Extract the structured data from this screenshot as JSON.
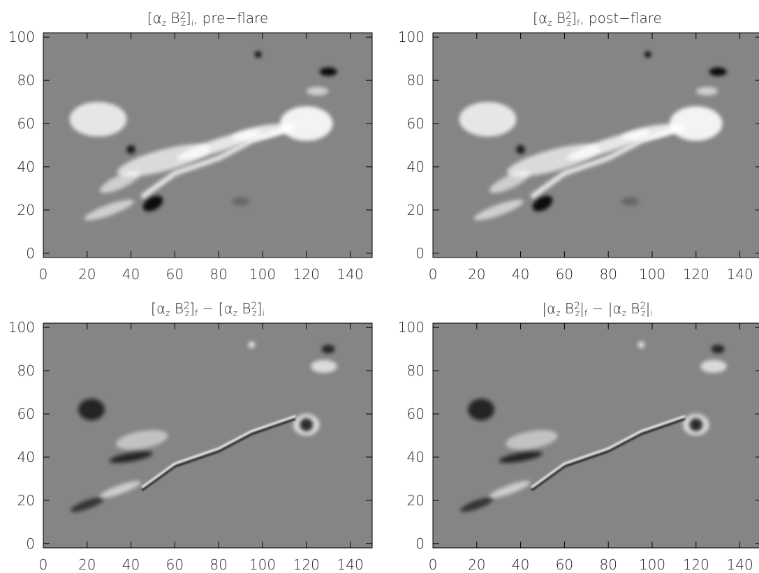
{
  "chart_data": [
    {
      "type": "image",
      "title_parts": [
        {
          "text": "[α"
        },
        {
          "text": "z",
          "pos": "sub"
        },
        {
          "text": " B"
        },
        {
          "text": "2",
          "pos": "sup"
        },
        {
          "text": "z",
          "pos": "sub"
        },
        {
          "text": "]"
        },
        {
          "text": "i",
          "pos": "sub"
        },
        {
          "text": ", pre−flare"
        }
      ],
      "xlim": [
        0,
        150
      ],
      "ylim": [
        -2,
        102
      ],
      "xticks": [
        0,
        20,
        40,
        60,
        80,
        100,
        120,
        140
      ],
      "yticks": [
        0,
        20,
        40,
        60,
        80,
        100
      ]
    },
    {
      "type": "image",
      "title_parts": [
        {
          "text": "[α"
        },
        {
          "text": "z",
          "pos": "sub"
        },
        {
          "text": " B"
        },
        {
          "text": "2",
          "pos": "sup"
        },
        {
          "text": "z",
          "pos": "sub"
        },
        {
          "text": "]"
        },
        {
          "text": "f",
          "pos": "sub"
        },
        {
          "text": ", post−flare"
        }
      ],
      "xlim": [
        0,
        150
      ],
      "ylim": [
        -2,
        102
      ],
      "xticks": [
        0,
        20,
        40,
        60,
        80,
        100,
        120,
        140
      ],
      "yticks": [
        0,
        20,
        40,
        60,
        80,
        100
      ]
    },
    {
      "type": "image",
      "title_parts": [
        {
          "text": "[α"
        },
        {
          "text": "z",
          "pos": "sub"
        },
        {
          "text": " B"
        },
        {
          "text": "2",
          "pos": "sup"
        },
        {
          "text": "z",
          "pos": "sub"
        },
        {
          "text": "]"
        },
        {
          "text": "f",
          "pos": "sub"
        },
        {
          "text": " − [α"
        },
        {
          "text": "z",
          "pos": "sub"
        },
        {
          "text": " B"
        },
        {
          "text": "2",
          "pos": "sup"
        },
        {
          "text": "z",
          "pos": "sub"
        },
        {
          "text": "]"
        },
        {
          "text": "i",
          "pos": "sub"
        }
      ],
      "xlim": [
        0,
        150
      ],
      "ylim": [
        -2,
        102
      ],
      "xticks": [
        0,
        20,
        40,
        60,
        80,
        100,
        120,
        140
      ],
      "yticks": [
        0,
        20,
        40,
        60,
        80,
        100
      ]
    },
    {
      "type": "image",
      "title_parts": [
        {
          "text": "|α"
        },
        {
          "text": "z",
          "pos": "sub"
        },
        {
          "text": " B"
        },
        {
          "text": "2",
          "pos": "sup"
        },
        {
          "text": "z",
          "pos": "sub"
        },
        {
          "text": "|"
        },
        {
          "text": "f",
          "pos": "sub"
        },
        {
          "text": " − |α"
        },
        {
          "text": "z",
          "pos": "sub"
        },
        {
          "text": " B"
        },
        {
          "text": "2",
          "pos": "sup"
        },
        {
          "text": "z",
          "pos": "sub"
        },
        {
          "text": "|"
        },
        {
          "text": "i",
          "pos": "sub"
        }
      ],
      "xlim": [
        0,
        150
      ],
      "ylim": [
        -2,
        102
      ],
      "xticks": [
        0,
        20,
        40,
        60,
        80,
        100,
        120,
        140
      ],
      "yticks": [
        0,
        20,
        40,
        60,
        80,
        100
      ]
    }
  ]
}
